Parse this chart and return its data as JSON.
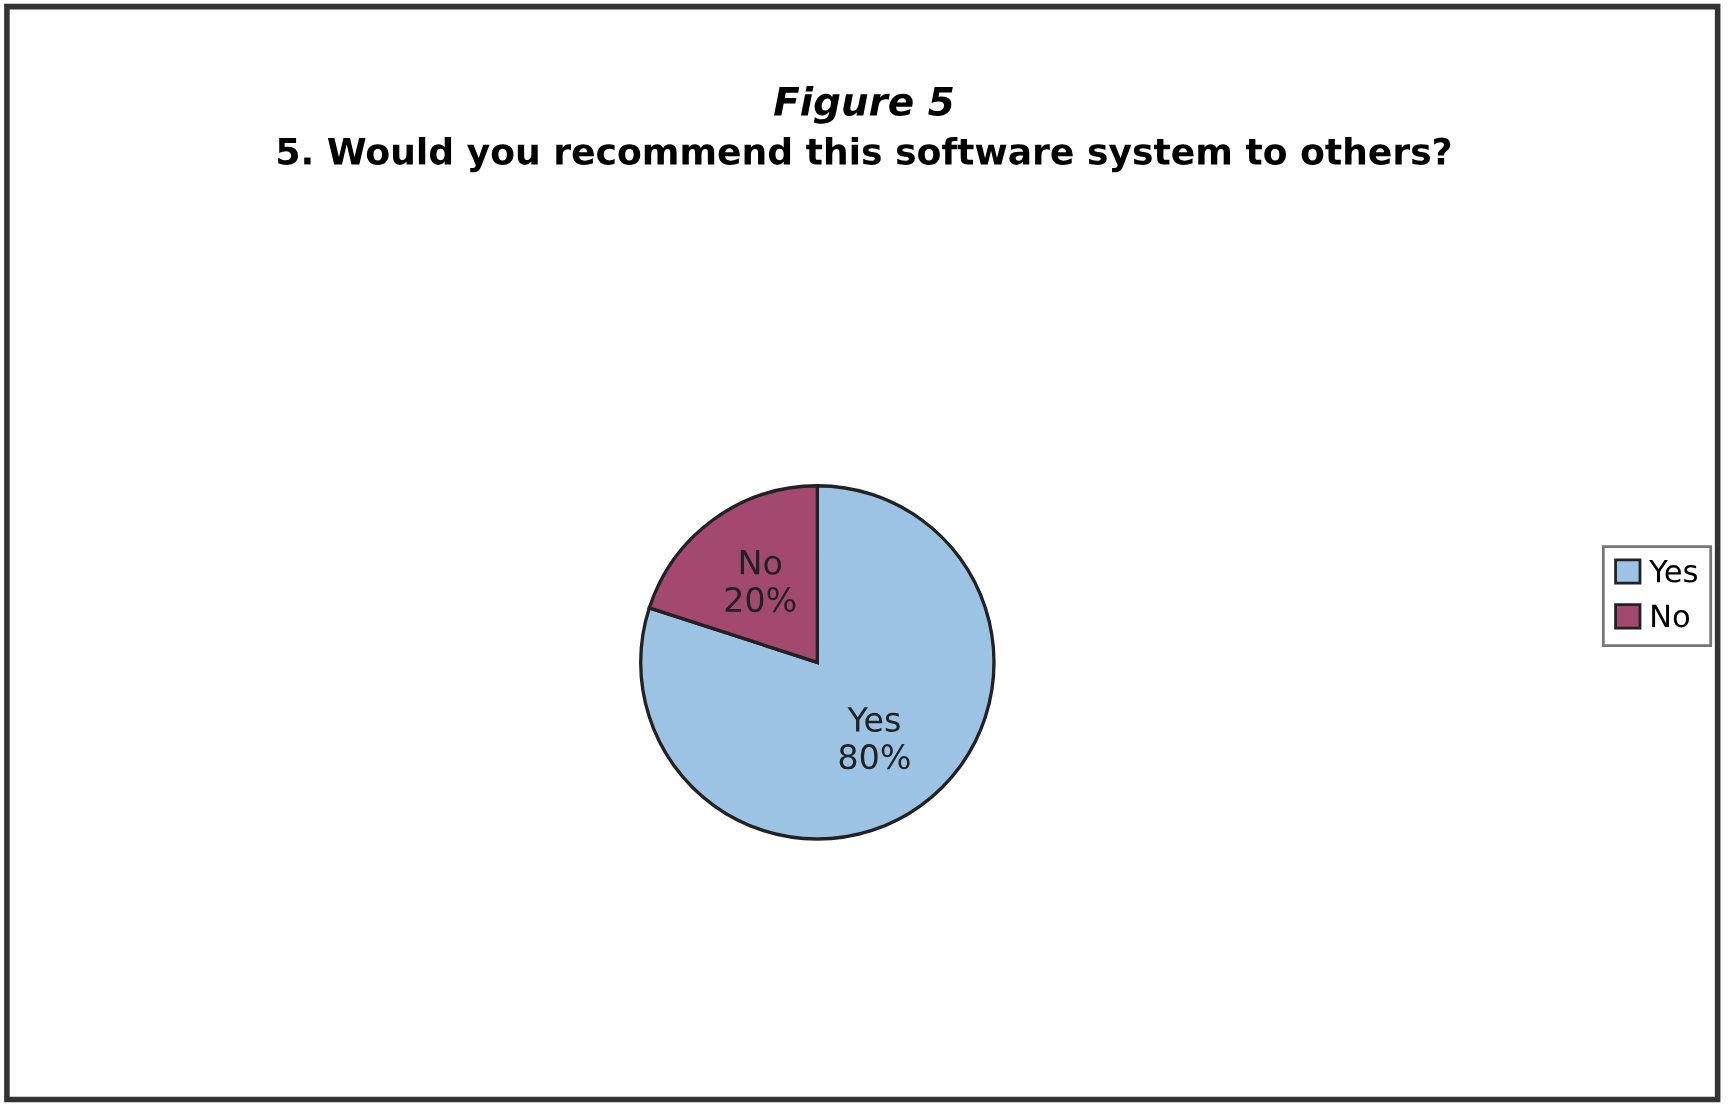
{
  "chart_data": {
    "type": "pie",
    "title": "Figure 5",
    "subtitle": "5. Would you recommend this software system to others?",
    "categories": [
      "Yes",
      "No"
    ],
    "values": [
      80,
      20
    ],
    "colors": [
      "#9cc3e3",
      "#a3496f"
    ],
    "value_labels": [
      "80%",
      "20%"
    ],
    "legend": "right"
  }
}
